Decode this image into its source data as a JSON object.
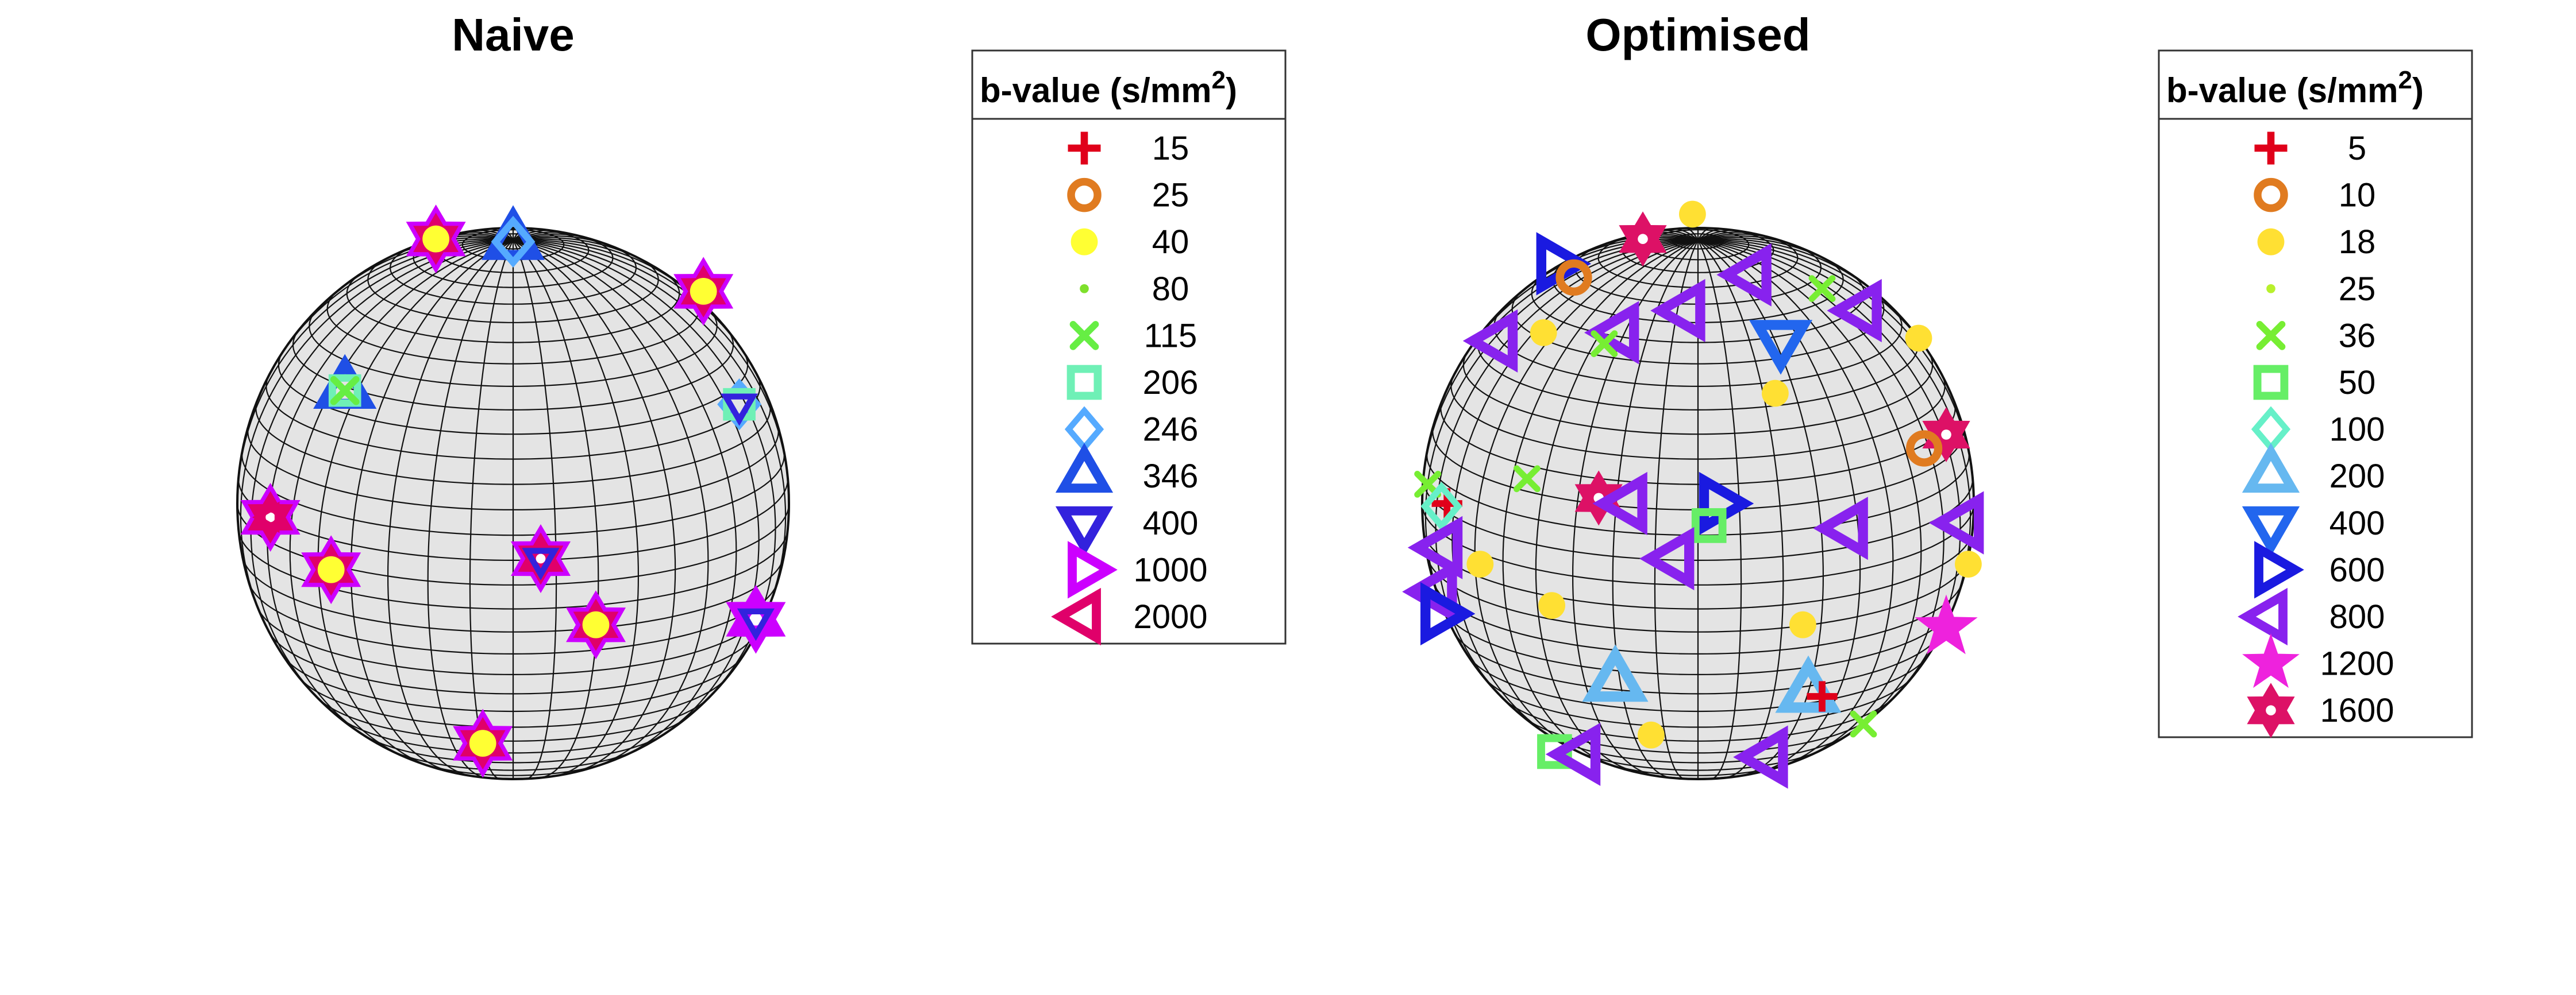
{
  "chart_data": [
    {
      "type": "scatter",
      "subtype": "sphere-projection",
      "title": "Naive",
      "legend_title": "b-value (s/mm",
      "legend_title_sup": "2",
      "legend_title_close": ")",
      "grid": true,
      "legend": [
        {
          "label": "15",
          "marker": "plus",
          "color": "#e0001a"
        },
        {
          "label": "25",
          "marker": "ring",
          "color": "#e07b20"
        },
        {
          "label": "40",
          "marker": "dot",
          "color": "#ffff33"
        },
        {
          "label": "80",
          "marker": "small-dot",
          "color": "#7ee02c"
        },
        {
          "label": "115",
          "marker": "x",
          "color": "#66ee44"
        },
        {
          "label": "206",
          "marker": "square",
          "color": "#6ff0b6"
        },
        {
          "label": "246",
          "marker": "diamond",
          "color": "#55aaff"
        },
        {
          "label": "346",
          "marker": "triangle-up",
          "color": "#1f4fe6"
        },
        {
          "label": "400",
          "marker": "triangle-down",
          "color": "#3322dd"
        },
        {
          "label": "1000",
          "marker": "triangle-right",
          "color": "#cc00ff"
        },
        {
          "label": "2000",
          "marker": "triangle-left",
          "color": "#e0006a"
        }
      ],
      "points": [
        {
          "x": -0.28,
          "y": 0.96,
          "markers": [
            "star-m",
            "star-r",
            "dot"
          ]
        },
        {
          "x": 0.0,
          "y": 0.95,
          "markers": [
            "triangle-up-blue",
            "diamond"
          ]
        },
        {
          "x": 0.69,
          "y": 0.77,
          "markers": [
            "star-m",
            "star-r",
            "dot"
          ]
        },
        {
          "x": -0.61,
          "y": 0.41,
          "markers": [
            "triangle-up-blue",
            "square",
            "x"
          ]
        },
        {
          "x": 0.82,
          "y": 0.36,
          "markers": [
            "diamond",
            "square",
            "triangle-down-s"
          ]
        },
        {
          "x": -0.88,
          "y": -0.05,
          "markers": [
            "star-m",
            "star-r",
            "triangle-left-s"
          ]
        },
        {
          "x": -0.66,
          "y": -0.24,
          "markers": [
            "star-m",
            "star-r",
            "dot"
          ]
        },
        {
          "x": 0.1,
          "y": -0.2,
          "markers": [
            "star-m",
            "star-r",
            "triangle-down-s"
          ]
        },
        {
          "x": 0.3,
          "y": -0.44,
          "markers": [
            "star-m",
            "star-r",
            "dot"
          ]
        },
        {
          "x": 0.88,
          "y": -0.42,
          "markers": [
            "star-b",
            "star-m",
            "triangle-down-s"
          ]
        },
        {
          "x": -0.11,
          "y": -0.87,
          "markers": [
            "star-m",
            "star-r",
            "dot"
          ]
        }
      ]
    },
    {
      "type": "scatter",
      "subtype": "sphere-projection",
      "title": "Optimised",
      "legend_title": "b-value (s/mm",
      "legend_title_sup": "2",
      "legend_title_close": ")",
      "grid": true,
      "legend": [
        {
          "label": "5",
          "marker": "plus",
          "color": "#e0001a"
        },
        {
          "label": "10",
          "marker": "ring",
          "color": "#e07b20"
        },
        {
          "label": "18",
          "marker": "dot",
          "color": "#ffe033"
        },
        {
          "label": "25",
          "marker": "small-dot",
          "color": "#b8f02c"
        },
        {
          "label": "36",
          "marker": "x",
          "color": "#77ee33"
        },
        {
          "label": "50",
          "marker": "square",
          "color": "#66ee66"
        },
        {
          "label": "100",
          "marker": "diamond",
          "color": "#66f0c8"
        },
        {
          "label": "200",
          "marker": "triangle-up",
          "color": "#66b8f0"
        },
        {
          "label": "400",
          "marker": "triangle-down",
          "color": "#2266ee"
        },
        {
          "label": "600",
          "marker": "triangle-right",
          "color": "#1a1ae0"
        },
        {
          "label": "800",
          "marker": "triangle-left",
          "color": "#8822ee"
        },
        {
          "label": "1200",
          "marker": "star",
          "color": "#ee22dd"
        },
        {
          "label": "1600",
          "marker": "hexagram",
          "color": "#dd1166"
        }
      ],
      "points": [
        {
          "x": -0.2,
          "y": 0.96,
          "m": "hexagram"
        },
        {
          "x": -0.02,
          "y": 1.05,
          "m": "dot"
        },
        {
          "x": -0.52,
          "y": 0.87,
          "m": "triangle-right"
        },
        {
          "x": -0.45,
          "y": 0.82,
          "m": "ring"
        },
        {
          "x": 0.2,
          "y": 0.83,
          "m": "triangle-left"
        },
        {
          "x": 0.45,
          "y": 0.78,
          "m": "x"
        },
        {
          "x": -0.04,
          "y": 0.7,
          "m": "triangle-left"
        },
        {
          "x": 0.6,
          "y": 0.7,
          "m": "triangle-left"
        },
        {
          "x": -0.28,
          "y": 0.62,
          "m": "triangle-left"
        },
        {
          "x": 0.3,
          "y": 0.6,
          "m": "triangle-down"
        },
        {
          "x": 0.8,
          "y": 0.6,
          "m": "dot"
        },
        {
          "x": -0.72,
          "y": 0.59,
          "m": "triangle-left"
        },
        {
          "x": -0.56,
          "y": 0.62,
          "m": "dot"
        },
        {
          "x": -0.34,
          "y": 0.58,
          "m": "x"
        },
        {
          "x": 0.28,
          "y": 0.4,
          "m": "dot"
        },
        {
          "x": 0.9,
          "y": 0.25,
          "m": "hexagram"
        },
        {
          "x": 0.82,
          "y": 0.2,
          "m": "ring"
        },
        {
          "x": -0.62,
          "y": 0.09,
          "m": "x"
        },
        {
          "x": -0.98,
          "y": 0.07,
          "m": "x"
        },
        {
          "x": -0.91,
          "y": 0.0,
          "m": "plus"
        },
        {
          "x": -0.93,
          "y": -0.01,
          "m": "diamond"
        },
        {
          "x": -0.36,
          "y": 0.02,
          "m": "hexagram"
        },
        {
          "x": -0.25,
          "y": 0.0,
          "m": "triangle-left"
        },
        {
          "x": 0.07,
          "y": 0.0,
          "m": "triangle-right"
        },
        {
          "x": 0.04,
          "y": -0.08,
          "m": "square"
        },
        {
          "x": 0.55,
          "y": -0.09,
          "m": "triangle-left"
        },
        {
          "x": 0.97,
          "y": -0.07,
          "m": "triangle-left"
        },
        {
          "x": -0.92,
          "y": -0.16,
          "m": "triangle-left"
        },
        {
          "x": -0.79,
          "y": -0.22,
          "m": "dot"
        },
        {
          "x": -0.08,
          "y": -0.2,
          "m": "triangle-left"
        },
        {
          "x": 0.98,
          "y": -0.22,
          "m": "dot"
        },
        {
          "x": -0.94,
          "y": -0.32,
          "m": "triangle-left"
        },
        {
          "x": -0.94,
          "y": -0.4,
          "m": "triangle-right"
        },
        {
          "x": -0.53,
          "y": -0.37,
          "m": "dot"
        },
        {
          "x": 0.38,
          "y": -0.44,
          "m": "dot"
        },
        {
          "x": 0.9,
          "y": -0.45,
          "m": "star"
        },
        {
          "x": -0.3,
          "y": -0.65,
          "m": "triangle-up"
        },
        {
          "x": 0.4,
          "y": -0.69,
          "m": "triangle-up"
        },
        {
          "x": 0.45,
          "y": -0.7,
          "m": "plus"
        },
        {
          "x": 0.6,
          "y": -0.8,
          "m": "x"
        },
        {
          "x": -0.52,
          "y": -0.9,
          "m": "square"
        },
        {
          "x": -0.42,
          "y": -0.91,
          "m": "triangle-left"
        },
        {
          "x": -0.17,
          "y": -0.84,
          "m": "dot"
        },
        {
          "x": 0.26,
          "y": -0.92,
          "m": "triangle-left"
        }
      ]
    }
  ]
}
